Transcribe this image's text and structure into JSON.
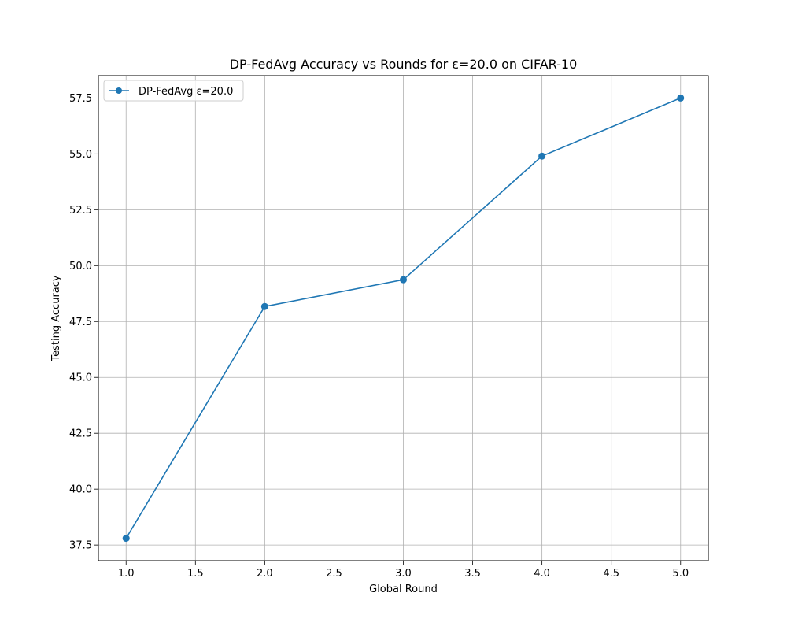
{
  "chart_data": {
    "type": "line",
    "title": "DP-FedAvg Accuracy vs Rounds for ε=20.0 on CIFAR-10",
    "xlabel": "Global Round",
    "ylabel": "Testing Accuracy",
    "xlim": [
      0.8,
      5.2
    ],
    "ylim": [
      36.8,
      58.5
    ],
    "xticks": [
      1.0,
      1.5,
      2.0,
      2.5,
      3.0,
      3.5,
      4.0,
      4.5,
      5.0
    ],
    "xtick_labels": [
      "1.0",
      "1.5",
      "2.0",
      "2.5",
      "3.0",
      "3.5",
      "4.0",
      "4.5",
      "5.0"
    ],
    "yticks": [
      37.5,
      40.0,
      42.5,
      45.0,
      47.5,
      50.0,
      52.5,
      55.0,
      57.5
    ],
    "ytick_labels": [
      "37.5",
      "40.0",
      "42.5",
      "45.0",
      "47.5",
      "50.0",
      "52.5",
      "55.0",
      "57.5"
    ],
    "grid": true,
    "legend_position": "top-left",
    "series": [
      {
        "name": "DP-FedAvg ε=20.0",
        "color": "#1f77b4",
        "marker": "circle",
        "x": [
          1,
          2,
          3,
          4,
          5
        ],
        "y": [
          37.8,
          48.17,
          49.37,
          54.9,
          57.5
        ]
      }
    ]
  }
}
